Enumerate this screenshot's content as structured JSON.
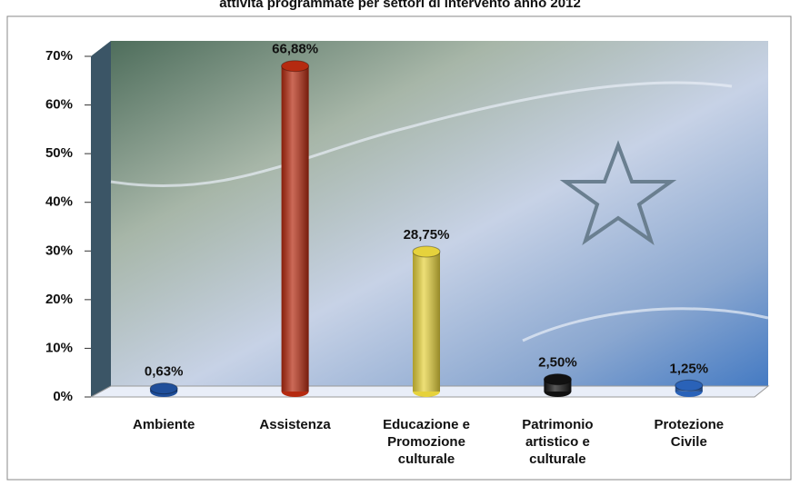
{
  "chart_data": {
    "type": "bar",
    "title": "attività programmate per settori di intervento anno 2012",
    "categories": [
      "Ambiente",
      "Assistenza",
      "Educazione e\nPromozione\nculturale",
      "Patrimonio\nartistico e\nculturale",
      "Protezione\nCivile"
    ],
    "values": [
      0.63,
      66.88,
      28.75,
      2.5,
      1.25
    ],
    "value_labels": [
      "0,63%",
      "66,88%",
      "28,75%",
      "2,50%",
      "1,25%"
    ],
    "colors": [
      "#1f4e9a",
      "#b52a10",
      "#e6d23c",
      "#111111",
      "#2a62b8"
    ],
    "ylim": [
      0,
      70
    ],
    "yticks": [
      {
        "value": 0,
        "label": "0%"
      },
      {
        "value": 10,
        "label": "10%"
      },
      {
        "value": 20,
        "label": "20%"
      },
      {
        "value": 30,
        "label": "30%"
      },
      {
        "value": 40,
        "label": "40%"
      },
      {
        "value": 50,
        "label": "50%"
      },
      {
        "value": 60,
        "label": "60%"
      },
      {
        "value": 70,
        "label": "70%"
      }
    ],
    "grid": false
  }
}
